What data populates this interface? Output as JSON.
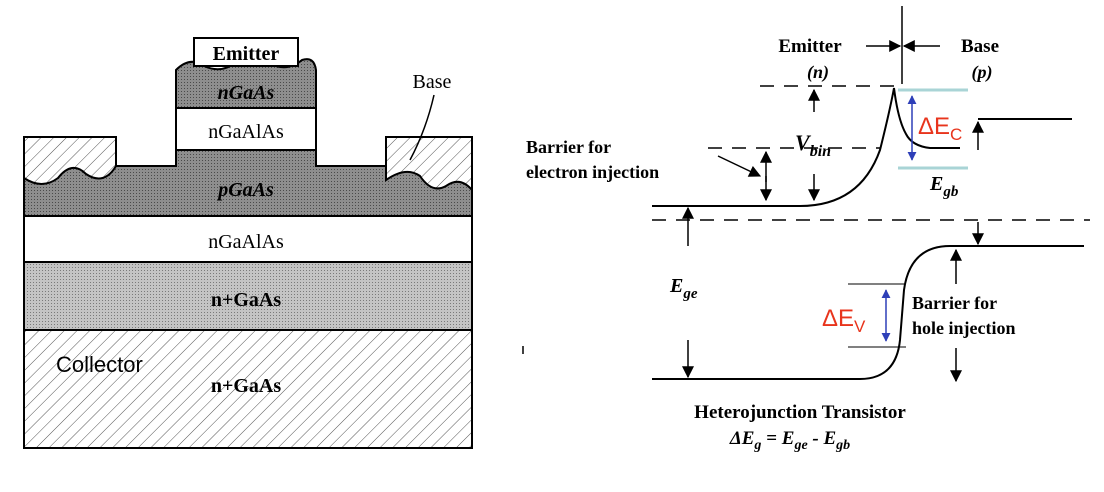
{
  "structure": {
    "emitter_label": "Emitter",
    "layer_emitter_ngaas": "nGaAs",
    "layer_emitter_ngaalas": "nGaAlAs",
    "base_label": "Base",
    "layer_pgaas": "pGaAs",
    "layer_ngaalas": "nGaAlAs",
    "layer_n_plus_gaas_top": "n+GaAs",
    "collector_label": "Collector",
    "layer_n_plus_gaas_bottom": "n+GaAs"
  },
  "band_diagram": {
    "emitter_heading": "Emitter",
    "emitter_type": "(n)",
    "base_heading": "Base",
    "base_type": "(p)",
    "barrier_electron_line1": "Barrier for",
    "barrier_electron_line2": "electron injection",
    "v_bin": "V",
    "v_bin_sub": "bin",
    "delta_ec": "ΔE",
    "delta_ec_sub": "C",
    "e_gb": "E",
    "e_gb_sub": "gb",
    "e_ge": "E",
    "e_ge_sub": "ge",
    "delta_ev": "ΔE",
    "delta_ev_sub": "V",
    "barrier_hole_line1": "Barrier for",
    "barrier_hole_line2": "hole injection",
    "caption_title": "Heterojunction Transistor",
    "caption_formula": {
      "delta": "Δ",
      "e1": "E",
      "sub1": "g",
      "eq": " = ",
      "e2": "E",
      "sub2": "ge",
      "minus": " - ",
      "e3": "E",
      "sub3": "gb"
    }
  },
  "colors": {
    "accent_red": "#e8341c",
    "arrow_blue": "#2e3fb8",
    "highlight_cyan": "#a9d4d6"
  }
}
